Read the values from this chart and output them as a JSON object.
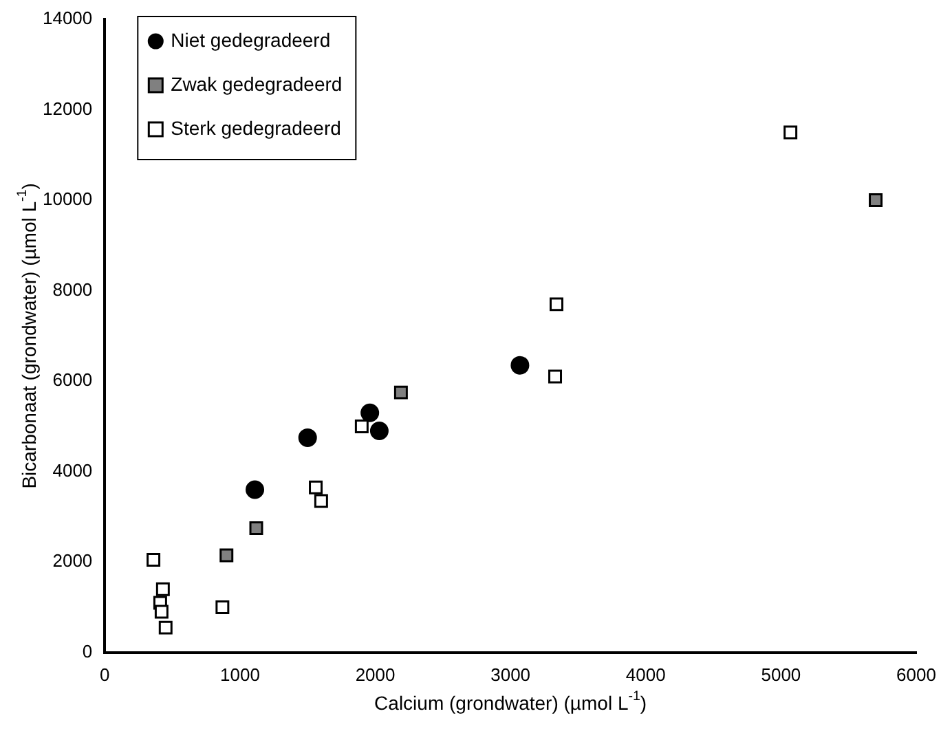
{
  "chart_data": {
    "type": "scatter",
    "xlabel": "Calcium (grondwater) (µmol L$^{-1}$)",
    "ylabel": "Bicarbonaat (grondwater) (µmol L$^{-1}$)",
    "xlim": [
      0,
      6000
    ],
    "xticks": [
      0,
      1000,
      2000,
      3000,
      4000,
      5000,
      6000
    ],
    "ylim": [
      0,
      14000
    ],
    "yticks": [
      0,
      2000,
      4000,
      6000,
      8000,
      10000,
      12000,
      14000
    ],
    "grid": false,
    "legend": "top left",
    "series": [
      {
        "name": "Niet gedegradeerd",
        "color": "#000000",
        "marker": "circle",
        "x": [
          1110,
          1500,
          1960,
          2030,
          3070
        ],
        "values": [
          3600,
          4750,
          5300,
          4900,
          6350
        ]
      },
      {
        "name": "Zwak gedegradeerd",
        "color": "#808080",
        "marker": "square",
        "x": [
          900,
          1120,
          2190,
          5700
        ],
        "values": [
          2150,
          2750,
          5750,
          10000
        ]
      },
      {
        "name": "Sterk gedegradeerd",
        "color": "#ffffff",
        "marker": "square",
        "x": [
          360,
          430,
          410,
          420,
          450,
          870,
          1560,
          1600,
          1900,
          3340,
          3330,
          5070
        ],
        "values": [
          2050,
          1400,
          1100,
          900,
          550,
          1000,
          3650,
          3350,
          5000,
          7700,
          6100,
          11500
        ]
      }
    ]
  }
}
